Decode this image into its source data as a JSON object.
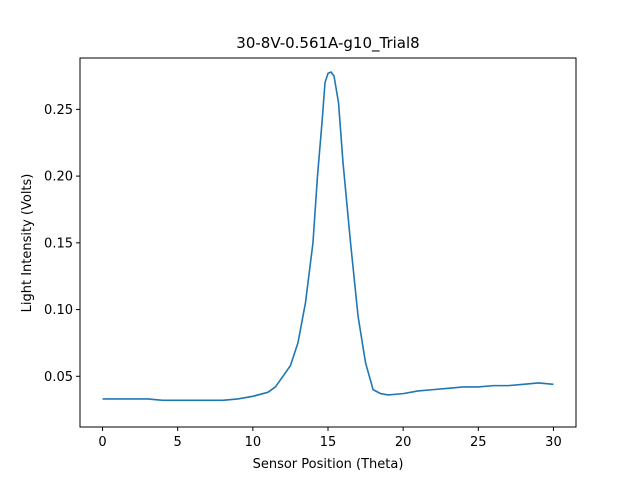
{
  "chart_data": {
    "type": "line",
    "title": "30-8V-0.561A-g10_Trial8",
    "xlabel": "Sensor Position (Theta)",
    "ylabel": "Light Intensity (Volts)",
    "xlim": [
      -1.5,
      31.5
    ],
    "ylim": [
      0.012,
      0.2885
    ],
    "xticks": [
      0,
      5,
      10,
      15,
      20,
      25,
      30
    ],
    "xtick_labels": [
      "0",
      "5",
      "10",
      "15",
      "20",
      "25",
      "30"
    ],
    "yticks": [
      0.05,
      0.1,
      0.15,
      0.2,
      0.25
    ],
    "ytick_labels": [
      "0.05",
      "0.10",
      "0.15",
      "0.20",
      "0.25"
    ],
    "grid": false,
    "series": [
      {
        "color": "#1f77b4",
        "x": [
          0,
          1,
          2,
          3,
          4,
          5,
          6,
          7,
          8,
          9,
          10,
          11,
          11.5,
          12,
          12.5,
          13,
          13.5,
          14,
          14.3,
          14.6,
          14.8,
          15.0,
          15.2,
          15.4,
          15.7,
          16.0,
          16.5,
          17.0,
          17.5,
          18.0,
          18.5,
          19,
          20,
          21,
          22,
          23,
          24,
          25,
          26,
          27,
          28,
          29,
          30
        ],
        "y": [
          0.033,
          0.033,
          0.033,
          0.033,
          0.032,
          0.032,
          0.032,
          0.032,
          0.032,
          0.033,
          0.035,
          0.038,
          0.042,
          0.05,
          0.058,
          0.075,
          0.105,
          0.15,
          0.2,
          0.24,
          0.27,
          0.277,
          0.278,
          0.275,
          0.255,
          0.21,
          0.15,
          0.095,
          0.06,
          0.04,
          0.037,
          0.036,
          0.037,
          0.039,
          0.04,
          0.041,
          0.042,
          0.042,
          0.043,
          0.043,
          0.044,
          0.045,
          0.044
        ]
      }
    ]
  }
}
